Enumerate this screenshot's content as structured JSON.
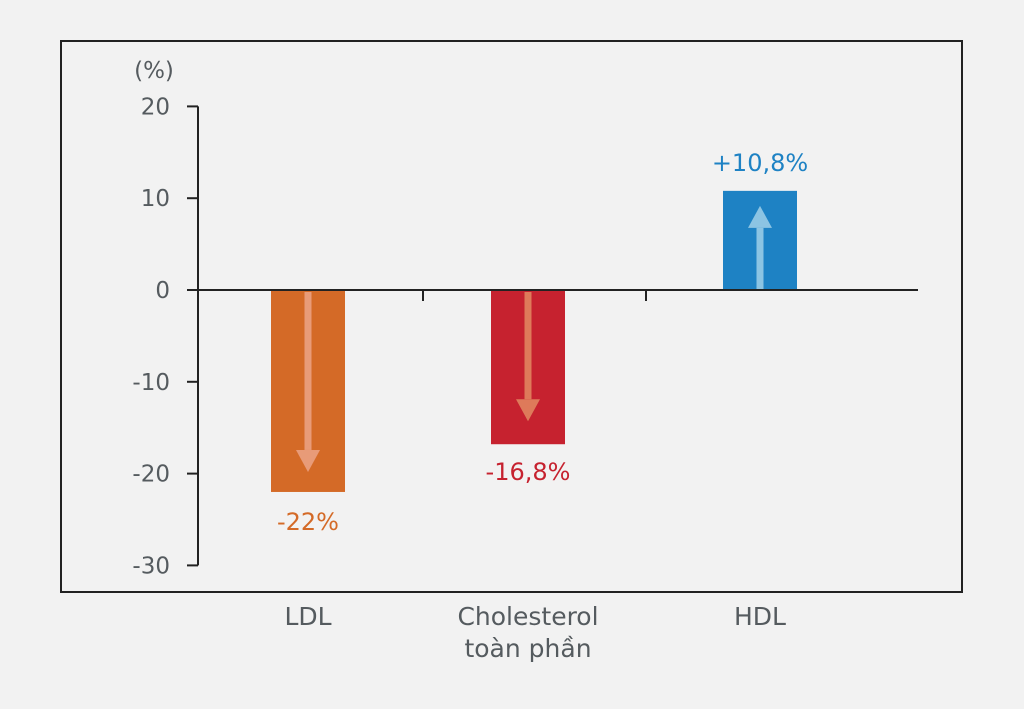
{
  "chart_data": {
    "type": "bar",
    "title": "",
    "xlabel": "",
    "ylabel": "(%)",
    "ylim": [
      -30,
      20
    ],
    "yticks": [
      20,
      10,
      0,
      -10,
      -20,
      -30
    ],
    "grid": false,
    "categories": [
      [
        "LDL"
      ],
      [
        "Cholesterol",
        "toàn phần"
      ],
      [
        "HDL"
      ]
    ],
    "values": [
      -22,
      -16.8,
      10.8
    ],
    "data_labels": [
      "-22%",
      "-16,8%",
      "+10,8%"
    ],
    "bar_colors": [
      "#d46a27",
      "#c6222f",
      "#1e82c4"
    ],
    "arrow_colors": [
      "#e89b78",
      "#de7a5a",
      "#8cc4e3"
    ],
    "label_colors": [
      "#d46a27",
      "#c6222f",
      "#1e82c4"
    ],
    "arrow_directions": [
      "down",
      "down",
      "up"
    ]
  }
}
